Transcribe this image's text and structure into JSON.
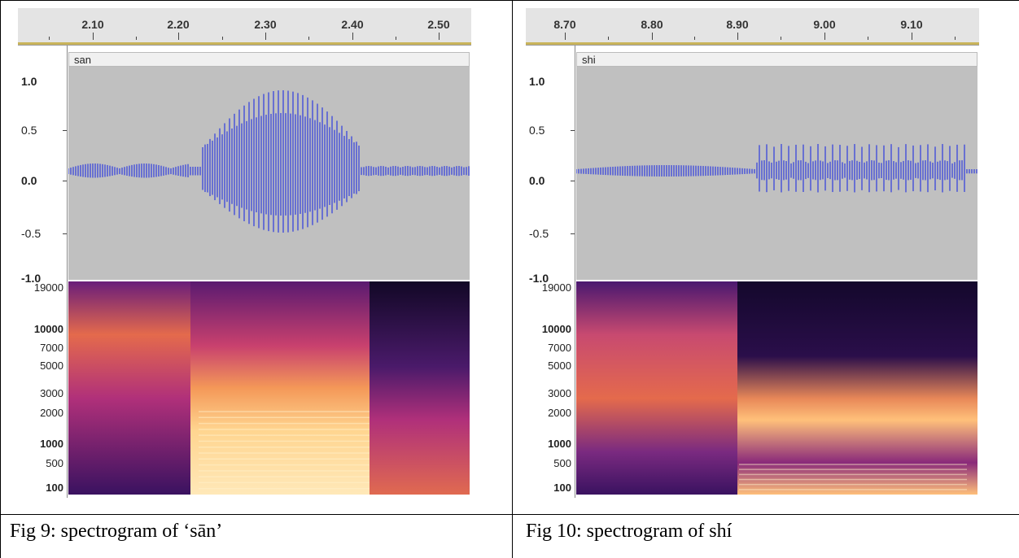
{
  "figures": [
    {
      "id": "fig9",
      "ruler_ticks": [
        "2.10",
        "2.20",
        "2.30",
        "2.40",
        "2.50"
      ],
      "track_label": "san",
      "amplitude_labels": [
        "1.0",
        "0.5",
        "0.0",
        "-0.5",
        "-1.0"
      ],
      "frequency_labels": [
        "19000",
        "10000",
        "7000",
        "5000",
        "3000",
        "2000",
        "1000",
        "500",
        "100"
      ],
      "caption": "Fig 9: spectrogram of ‘sān’"
    },
    {
      "id": "fig10",
      "ruler_ticks": [
        "8.70",
        "8.80",
        "8.90",
        "9.00",
        "9.10"
      ],
      "track_label": "shi",
      "amplitude_labels": [
        "1.0",
        "0.5",
        "0.0",
        "-0.5",
        "-1.0"
      ],
      "frequency_labels": [
        "19000",
        "10000",
        "7000",
        "5000",
        "3000",
        "2000",
        "1000",
        "500",
        "100"
      ],
      "caption": "Fig 10: spectrogram of shí"
    }
  ],
  "colors": {
    "waveform": "#4a55d8",
    "wave_background": "#c0c0c0",
    "spectrogram_low": "#1a0a3a",
    "spectrogram_mid": "#b0307a",
    "spectrogram_high": "#ffd08a"
  }
}
